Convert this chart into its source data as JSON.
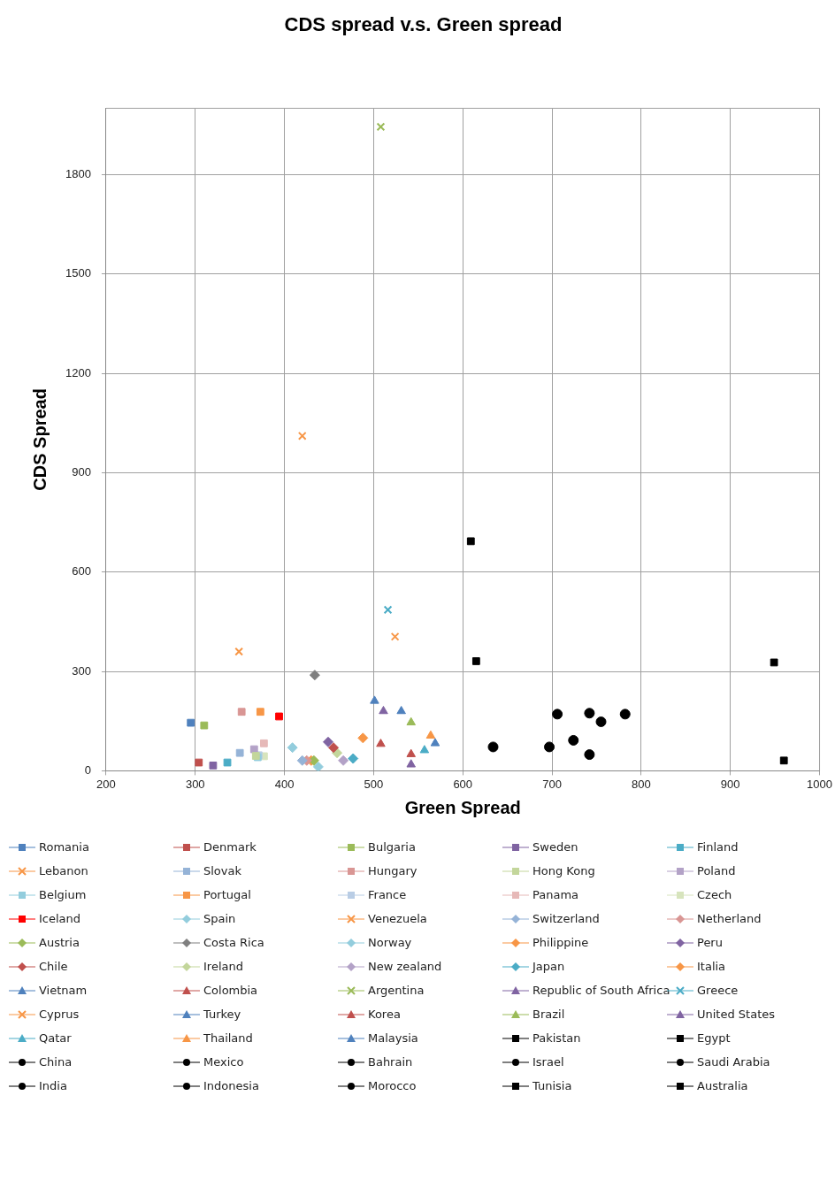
{
  "chart_data": {
    "type": "scatter",
    "title": "CDS spread v.s. Green spread",
    "xlabel": "Green Spread",
    "ylabel": "CDS Spread",
    "xlim": [
      200,
      1000
    ],
    "xticks": [
      200,
      300,
      400,
      500,
      600,
      700,
      800,
      900,
      1000
    ],
    "ylim": [
      0,
      2000
    ],
    "yticks": [
      0,
      300,
      600,
      900,
      1200,
      1500,
      1800
    ],
    "grid": true,
    "legend": "bottom",
    "series": [
      {
        "name": "Romania",
        "color": "#4f81bd",
        "marker": "square",
        "x": [
          295
        ],
        "values": [
          145
        ]
      },
      {
        "name": "Denmark",
        "color": "#c0504d",
        "marker": "square",
        "x": [
          304
        ],
        "values": [
          25
        ]
      },
      {
        "name": "Bulgaria",
        "color": "#9bbb59",
        "marker": "square",
        "x": [
          310
        ],
        "values": [
          137
        ]
      },
      {
        "name": "Sweden",
        "color": "#8064a2",
        "marker": "square",
        "x": [
          320
        ],
        "values": [
          16
        ]
      },
      {
        "name": "Finland",
        "color": "#4bacc6",
        "marker": "square",
        "x": [
          336
        ],
        "values": [
          25
        ]
      },
      {
        "name": "Lebanon",
        "color": "#f79646",
        "marker": "cross",
        "x": [
          349
        ],
        "values": [
          360
        ]
      },
      {
        "name": "Slovak",
        "color": "#95b3d7",
        "marker": "square",
        "x": [
          350
        ],
        "values": [
          54
        ]
      },
      {
        "name": "Hungary",
        "color": "#d99694",
        "marker": "square",
        "x": [
          352
        ],
        "values": [
          178
        ]
      },
      {
        "name": "Hong Kong",
        "color": "#c3d69b",
        "marker": "square",
        "x": [
          368
        ],
        "values": [
          45
        ]
      },
      {
        "name": "Poland",
        "color": "#b3a2c7",
        "marker": "square",
        "x": [
          366
        ],
        "values": [
          65
        ]
      },
      {
        "name": "Belgium",
        "color": "#93cddd",
        "marker": "square",
        "x": [
          370
        ],
        "values": [
          41
        ]
      },
      {
        "name": "Portugal",
        "color": "#f79646",
        "marker": "square",
        "x": [
          373
        ],
        "values": [
          178
        ]
      },
      {
        "name": "France",
        "color": "#b9cde5",
        "marker": "square",
        "x": [
          371
        ],
        "values": [
          47
        ]
      },
      {
        "name": "Panama",
        "color": "#e6b9b8",
        "marker": "square",
        "x": [
          377
        ],
        "values": [
          83
        ]
      },
      {
        "name": "Czech",
        "color": "#d7e4bd",
        "marker": "square",
        "x": [
          377
        ],
        "values": [
          44
        ]
      },
      {
        "name": "Iceland",
        "color": "#ff0000",
        "marker": "square",
        "x": [
          394
        ],
        "values": [
          164
        ]
      },
      {
        "name": "Spain",
        "color": "#93cddd",
        "marker": "diamond",
        "x": [
          409
        ],
        "values": [
          70
        ]
      },
      {
        "name": "Venezuela",
        "color": "#f79646",
        "marker": "cross",
        "x": [
          420
        ],
        "values": [
          1011
        ]
      },
      {
        "name": "Switzerland",
        "color": "#95b3d7",
        "marker": "diamond",
        "x": [
          420
        ],
        "values": [
          31
        ]
      },
      {
        "name": "Netherland",
        "color": "#d99694",
        "marker": "diamond",
        "x": [
          425
        ],
        "values": [
          31
        ]
      },
      {
        "name": "Austria",
        "color": "#9bbb59",
        "marker": "diamond",
        "x": [
          433
        ],
        "values": [
          31
        ]
      },
      {
        "name": "Costa Rica",
        "color": "#7f7f7f",
        "marker": "diamond",
        "x": [
          434
        ],
        "values": [
          289
        ]
      },
      {
        "name": "Norway",
        "color": "#93cddd",
        "marker": "diamond",
        "x": [
          438
        ],
        "values": [
          12
        ]
      },
      {
        "name": "Philippine",
        "color": "#f79646",
        "marker": "diamond",
        "x": [
          488
        ],
        "values": [
          99
        ]
      },
      {
        "name": "Peru",
        "color": "#8064a2",
        "marker": "diamond",
        "x": [
          449
        ],
        "values": [
          87
        ]
      },
      {
        "name": "Chile",
        "color": "#c0504d",
        "marker": "diamond",
        "x": [
          455
        ],
        "values": [
          70
        ]
      },
      {
        "name": "Ireland",
        "color": "#c3d69b",
        "marker": "diamond",
        "x": [
          459
        ],
        "values": [
          54
        ]
      },
      {
        "name": "New zealand",
        "color": "#b3a2c7",
        "marker": "diamond",
        "x": [
          466
        ],
        "values": [
          31
        ]
      },
      {
        "name": "Japan",
        "color": "#4bacc6",
        "marker": "diamond",
        "x": [
          477
        ],
        "values": [
          37
        ]
      },
      {
        "name": "Italia",
        "color": "#f79646",
        "marker": "diamond",
        "x": [
          430
        ],
        "values": [
          31
        ]
      },
      {
        "name": "Vietnam",
        "color": "#4f81bd",
        "marker": "triangle",
        "x": [
          501
        ],
        "values": [
          211
        ]
      },
      {
        "name": "Colombia",
        "color": "#c0504d",
        "marker": "triangle",
        "x": [
          508
        ],
        "values": [
          81
        ]
      },
      {
        "name": "Argentina",
        "color": "#9bbb59",
        "marker": "cross",
        "x": [
          508
        ],
        "values": [
          1944
        ]
      },
      {
        "name": "Republic of South Africa",
        "color": "#8064a2",
        "marker": "triangle",
        "x": [
          511
        ],
        "values": [
          180
        ]
      },
      {
        "name": "Greece",
        "color": "#4bacc6",
        "marker": "cross",
        "x": [
          516
        ],
        "values": [
          486
        ]
      },
      {
        "name": "Cyprus",
        "color": "#f79646",
        "marker": "cross",
        "x": [
          524
        ],
        "values": [
          405
        ]
      },
      {
        "name": "Turkey",
        "color": "#4f81bd",
        "marker": "triangle",
        "x": [
          531
        ],
        "values": [
          180
        ]
      },
      {
        "name": "Korea",
        "color": "#c0504d",
        "marker": "triangle",
        "x": [
          542
        ],
        "values": [
          50
        ]
      },
      {
        "name": "Brazil",
        "color": "#9bbb59",
        "marker": "triangle",
        "x": [
          542
        ],
        "values": [
          146
        ]
      },
      {
        "name": "United States",
        "color": "#8064a2",
        "marker": "triangle",
        "x": [
          542
        ],
        "values": [
          19
        ]
      },
      {
        "name": "Qatar",
        "color": "#4bacc6",
        "marker": "triangle",
        "x": [
          557
        ],
        "values": [
          62
        ]
      },
      {
        "name": "Thailand",
        "color": "#f79646",
        "marker": "triangle",
        "x": [
          564
        ],
        "values": [
          106
        ]
      },
      {
        "name": "Malaysia",
        "color": "#4f81bd",
        "marker": "triangle",
        "x": [
          569
        ],
        "values": [
          83
        ]
      },
      {
        "name": "Pakistan",
        "color": "#000000",
        "marker": "square",
        "x": [
          609
        ],
        "values": [
          693
        ]
      },
      {
        "name": "Egypt",
        "color": "#000000",
        "marker": "square",
        "x": [
          615
        ],
        "values": [
          331
        ]
      },
      {
        "name": "China",
        "color": "#000000",
        "marker": "circle",
        "x": [
          634
        ],
        "values": [
          72
        ]
      },
      {
        "name": "Mexico",
        "color": "#000000",
        "marker": "circle",
        "x": [
          697
        ],
        "values": [
          72
        ]
      },
      {
        "name": "Bahrain",
        "color": "#000000",
        "marker": "circle",
        "x": [
          706
        ],
        "values": [
          171
        ]
      },
      {
        "name": "Israel",
        "color": "#000000",
        "marker": "circle",
        "x": [
          724
        ],
        "values": [
          92
        ]
      },
      {
        "name": "Saudi Arabia",
        "color": "#000000",
        "marker": "circle",
        "x": [
          742
        ],
        "values": [
          49
        ]
      },
      {
        "name": "India",
        "color": "#000000",
        "marker": "circle",
        "x": [
          742
        ],
        "values": [
          174
        ]
      },
      {
        "name": "Indonesia",
        "color": "#000000",
        "marker": "circle",
        "x": [
          755
        ],
        "values": [
          148
        ]
      },
      {
        "name": "Morocco",
        "color": "#000000",
        "marker": "circle",
        "x": [
          782
        ],
        "values": [
          171
        ]
      },
      {
        "name": "Tunisia",
        "color": "#000000",
        "marker": "square",
        "x": [
          949
        ],
        "values": [
          327
        ]
      },
      {
        "name": "Australia",
        "color": "#000000",
        "marker": "square",
        "x": [
          960
        ],
        "values": [
          31
        ]
      }
    ]
  }
}
